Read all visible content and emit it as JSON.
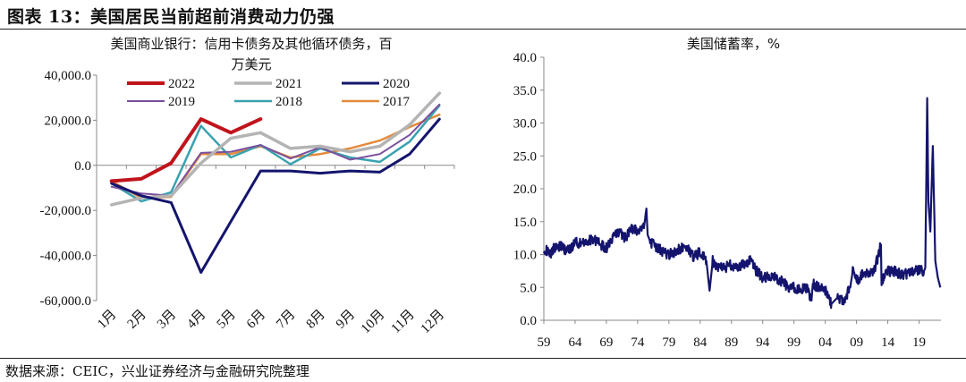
{
  "figure_title": "图表 13：美国居民当前超前消费动力仍强",
  "source": "数据来源：CEIC，兴业证券经济与金融研究院整理",
  "chart_data": [
    {
      "type": "line",
      "title_lines": [
        "美国商业银行：信用卡债务及其他循环债务，百",
        "万美元"
      ],
      "categories": [
        "1月",
        "2月",
        "3月",
        "4月",
        "5月",
        "6月",
        "7月",
        "8月",
        "9月",
        "10月",
        "11月",
        "12月"
      ],
      "y_ticks": [
        "40,000.0",
        "20,000.0",
        "0.0",
        "-20,000.0",
        "-40,000.0",
        "-60,000.0"
      ],
      "ylim": [
        -60000,
        40000
      ],
      "legend": "top, 3 columns",
      "series": [
        {
          "name": "2022",
          "color": "#c0141c",
          "width": 4,
          "values": [
            -7000,
            -6000,
            1000,
            20500,
            14500,
            20500,
            null,
            null,
            null,
            null,
            null,
            null
          ]
        },
        {
          "name": "2021",
          "color": "#b4b4b4",
          "width": 3.5,
          "values": [
            -17500,
            -14500,
            -13500,
            1000,
            12000,
            14500,
            7500,
            8500,
            6000,
            8500,
            18000,
            32000
          ]
        },
        {
          "name": "2020",
          "color": "#14146e",
          "width": 3,
          "values": [
            -8000,
            -13500,
            -16500,
            -47500,
            -25000,
            -2500,
            -2500,
            -3500,
            -2500,
            -3000,
            5000,
            20500
          ]
        },
        {
          "name": "2019",
          "color": "#7b4f9c",
          "width": 2,
          "values": [
            -9500,
            -12500,
            -13500,
            5500,
            6000,
            9000,
            3000,
            8000,
            2500,
            5000,
            13500,
            27000
          ]
        },
        {
          "name": "2018",
          "color": "#3aa1b0",
          "width": 2.5,
          "values": [
            -8000,
            -16000,
            -12000,
            17500,
            3500,
            9000,
            500,
            7500,
            3500,
            1500,
            10500,
            26500
          ]
        },
        {
          "name": "2017",
          "color": "#e48a3c",
          "width": 2.5,
          "values": [
            -7000,
            -14500,
            -14000,
            5000,
            5000,
            8500,
            3500,
            5000,
            7500,
            11000,
            17000,
            22500
          ]
        }
      ]
    },
    {
      "type": "line",
      "title": "美国储蓄率，%",
      "ylim": [
        0,
        40
      ],
      "y_ticks": [
        "40.0",
        "35.0",
        "30.0",
        "25.0",
        "20.0",
        "15.0",
        "10.0",
        "5.0",
        "0.0"
      ],
      "x_ticks": [
        "59",
        "64",
        "69",
        "74",
        "79",
        "84",
        "89",
        "94",
        "99",
        "04",
        "09",
        "14",
        "19"
      ],
      "xlim": [
        1959,
        2022.5
      ],
      "color": "#14146e",
      "series": [
        {
          "x": [
            1959.0,
            1960.0,
            1961.0,
            1962.0,
            1963.0,
            1964.0,
            1965.0,
            1966.0,
            1967.0,
            1968.0,
            1969.0,
            1970.0,
            1971.0,
            1972.0,
            1973.0,
            1974.0,
            1975.0,
            1975.4,
            1975.6,
            1976.0,
            1977.0,
            1978.0,
            1979.0,
            1980.0,
            1981.0,
            1982.0,
            1983.0,
            1984.0,
            1985.0,
            1985.5,
            1986.0,
            1987.0,
            1988.0,
            1989.0,
            1990.0,
            1991.0,
            1992.0,
            1993.0,
            1994.0,
            1995.0,
            1996.0,
            1997.0,
            1998.0,
            1999.0,
            2000.0,
            2001.0,
            2001.8,
            2002.0,
            2003.0,
            2004.0,
            2005.0,
            2005.5,
            2006.0,
            2007.0,
            2008.0,
            2008.4,
            2009.0,
            2010.0,
            2011.0,
            2012.0,
            2012.9,
            2013.0,
            2014.0,
            2015.0,
            2016.0,
            2017.0,
            2018.0,
            2019.0,
            2019.8,
            2020.0,
            2020.3,
            2020.5,
            2020.8,
            2021.0,
            2021.2,
            2021.6,
            2022.0,
            2022.4
          ],
          "y": [
            11.0,
            10.0,
            11.5,
            11.0,
            10.5,
            12.0,
            11.5,
            12.0,
            12.5,
            11.5,
            11.0,
            12.5,
            13.5,
            12.5,
            14.0,
            13.5,
            14.0,
            17.0,
            13.0,
            12.0,
            11.0,
            10.5,
            10.0,
            10.5,
            11.0,
            11.0,
            9.5,
            10.5,
            9.0,
            4.5,
            9.0,
            8.0,
            8.0,
            8.5,
            8.0,
            8.5,
            9.0,
            7.5,
            6.5,
            6.5,
            6.5,
            6.0,
            5.0,
            5.0,
            4.5,
            5.0,
            3.0,
            5.5,
            5.0,
            4.5,
            2.5,
            3.0,
            3.5,
            3.0,
            5.0,
            7.5,
            6.0,
            7.0,
            7.0,
            8.0,
            11.5,
            6.0,
            7.5,
            7.5,
            7.0,
            7.0,
            7.5,
            7.5,
            7.5,
            8.0,
            33.8,
            18.0,
            13.5,
            20.0,
            26.5,
            9.0,
            6.5,
            5.0
          ]
        }
      ]
    }
  ]
}
